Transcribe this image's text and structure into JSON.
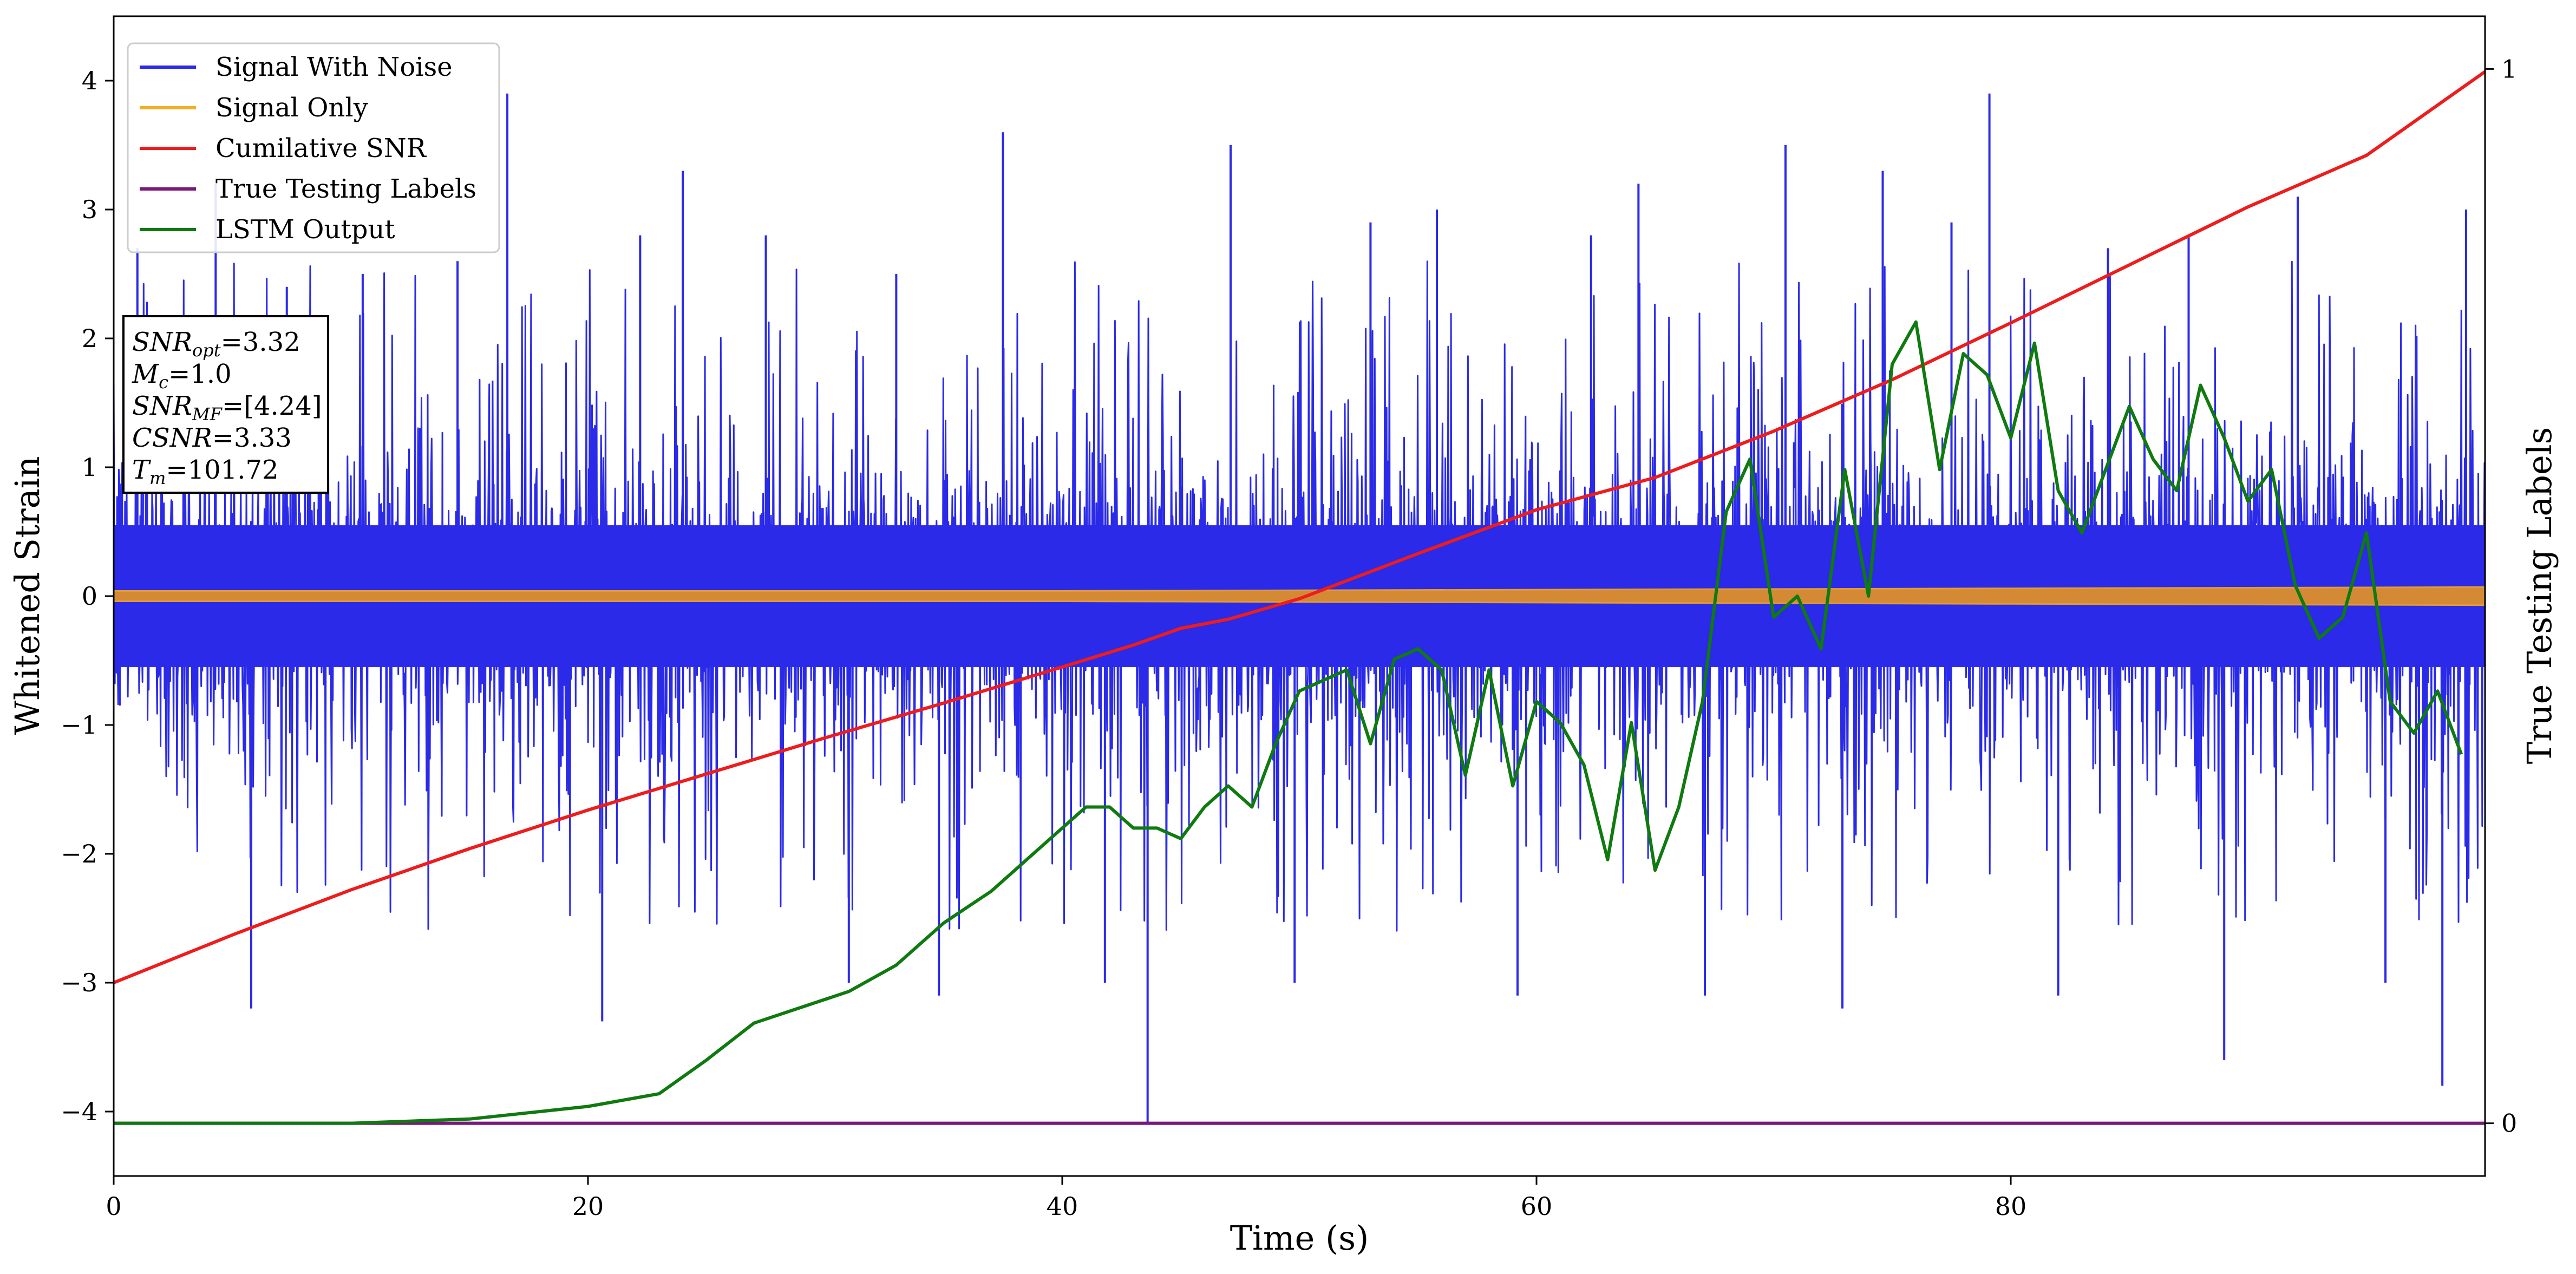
{
  "chart_data": {
    "type": "line",
    "xlabel": "Time (s)",
    "ylabel": "Whitened Strain",
    "y2label": "True Testing Labels",
    "xlim": [
      0,
      100
    ],
    "ylim": [
      -4.5,
      4.5
    ],
    "y2lim": [
      -0.05,
      1.05
    ],
    "grid": false,
    "legend_position": "top-left",
    "x_ticks": [
      {
        "value": 0,
        "label": "0"
      },
      {
        "value": 20,
        "label": "20"
      },
      {
        "value": 40,
        "label": "40"
      },
      {
        "value": 60,
        "label": "60"
      },
      {
        "value": 80,
        "label": "80"
      }
    ],
    "y_ticks": [
      {
        "value": 4,
        "label": "4"
      },
      {
        "value": 3,
        "label": "3"
      },
      {
        "value": 2,
        "label": "2"
      },
      {
        "value": 1,
        "label": "1"
      },
      {
        "value": 0,
        "label": "0"
      },
      {
        "value": -1,
        "label": "−1"
      },
      {
        "value": -2,
        "label": "−2"
      },
      {
        "value": -3,
        "label": "−3"
      },
      {
        "value": -4,
        "label": "−4"
      }
    ],
    "y2_ticks": [
      {
        "value": 1,
        "label": "1"
      },
      {
        "value": 0,
        "label": "0"
      }
    ],
    "series": [
      {
        "name": "Signal With Noise",
        "color": "#2a2ae8",
        "axis": "left",
        "kind": "noise",
        "x_range": [
          0,
          100
        ],
        "amplitude": 0.6,
        "peaks": [
          {
            "x": 1.0,
            "y": 2.7
          },
          {
            "x": 4.3,
            "y": 3.2
          },
          {
            "x": 5.8,
            "y": -3.2
          },
          {
            "x": 7.3,
            "y": 2.4
          },
          {
            "x": 10.5,
            "y": 2.5
          },
          {
            "x": 14.5,
            "y": 2.6
          },
          {
            "x": 16.6,
            "y": 3.9
          },
          {
            "x": 20.6,
            "y": -3.3
          },
          {
            "x": 22.2,
            "y": 2.8
          },
          {
            "x": 24.0,
            "y": 3.3
          },
          {
            "x": 27.5,
            "y": 2.8
          },
          {
            "x": 31.0,
            "y": -3.0
          },
          {
            "x": 33.0,
            "y": 2.5
          },
          {
            "x": 34.8,
            "y": -3.1
          },
          {
            "x": 37.5,
            "y": 3.6
          },
          {
            "x": 41.8,
            "y": -3.0
          },
          {
            "x": 43.6,
            "y": -4.1
          },
          {
            "x": 47.1,
            "y": 3.5
          },
          {
            "x": 49.8,
            "y": -3.0
          },
          {
            "x": 53.0,
            "y": 2.9
          },
          {
            "x": 55.8,
            "y": 3.0
          },
          {
            "x": 59.2,
            "y": -3.1
          },
          {
            "x": 62.3,
            "y": 2.8
          },
          {
            "x": 64.3,
            "y": 3.2
          },
          {
            "x": 67.1,
            "y": -3.1
          },
          {
            "x": 70.5,
            "y": 3.5
          },
          {
            "x": 72.9,
            "y": -3.2
          },
          {
            "x": 74.6,
            "y": 3.3
          },
          {
            "x": 77.5,
            "y": 2.9
          },
          {
            "x": 79.1,
            "y": 3.9
          },
          {
            "x": 82.0,
            "y": -3.1
          },
          {
            "x": 84.1,
            "y": 2.7
          },
          {
            "x": 87.5,
            "y": 2.8
          },
          {
            "x": 89.0,
            "y": -3.6
          },
          {
            "x": 92.1,
            "y": 3.1
          },
          {
            "x": 95.8,
            "y": -3.0
          },
          {
            "x": 98.2,
            "y": -3.8
          },
          {
            "x": 99.2,
            "y": 3.0
          }
        ]
      },
      {
        "name": "Signal Only",
        "color": "#f0b02a",
        "axis": "left",
        "kind": "band",
        "x": [
          0,
          20,
          40,
          60,
          80,
          100
        ],
        "y_upper": [
          0.04,
          0.04,
          0.04,
          0.05,
          0.06,
          0.07
        ],
        "y_lower": [
          -0.04,
          -0.04,
          -0.04,
          -0.05,
          -0.06,
          -0.07
        ]
      },
      {
        "name": "Cumilative SNR",
        "color": "#ee1c1c",
        "axis": "left",
        "kind": "line",
        "x": [
          0,
          5,
          10,
          15,
          20,
          25,
          30,
          35,
          40,
          43,
          45,
          47,
          50,
          55,
          60,
          65,
          70,
          75,
          80,
          85,
          90,
          95,
          100
        ],
        "y": [
          -3.0,
          -2.63,
          -2.28,
          -1.96,
          -1.66,
          -1.38,
          -1.1,
          -0.83,
          -0.55,
          -0.38,
          -0.25,
          -0.18,
          -0.02,
          0.33,
          0.67,
          0.92,
          1.28,
          1.68,
          2.12,
          2.57,
          3.02,
          3.42,
          4.07
        ]
      },
      {
        "name": "True Testing Labels",
        "color": "#7a177a",
        "axis": "right",
        "kind": "line",
        "x": [
          0,
          100
        ],
        "y": [
          0,
          0
        ]
      },
      {
        "name": "LSTM Output",
        "color": "#0f7a0f",
        "axis": "right",
        "kind": "line",
        "x": [
          0,
          10,
          15,
          20,
          23,
          25,
          27,
          29,
          31,
          33,
          35,
          37,
          38,
          39,
          40,
          41,
          42,
          43,
          44,
          45,
          46,
          47,
          48,
          49,
          50,
          51,
          52,
          53,
          54,
          55,
          56,
          57,
          58,
          59,
          60,
          61,
          62,
          63,
          64,
          65,
          66,
          67,
          68,
          69,
          70,
          71,
          72,
          73,
          74,
          75,
          76,
          77,
          78,
          79,
          80,
          81,
          82,
          83,
          84,
          85,
          86,
          87,
          88,
          89,
          90,
          91,
          92,
          93,
          94,
          95,
          96,
          97,
          98,
          99
        ],
        "y": [
          0,
          0,
          0.004,
          0.016,
          0.028,
          0.06,
          0.095,
          0.11,
          0.125,
          0.15,
          0.19,
          0.22,
          0.24,
          0.26,
          0.28,
          0.3,
          0.3,
          0.28,
          0.28,
          0.27,
          0.3,
          0.32,
          0.3,
          0.36,
          0.41,
          0.42,
          0.43,
          0.36,
          0.44,
          0.45,
          0.43,
          0.33,
          0.43,
          0.32,
          0.4,
          0.38,
          0.34,
          0.25,
          0.38,
          0.24,
          0.3,
          0.4,
          0.58,
          0.63,
          0.48,
          0.5,
          0.45,
          0.62,
          0.5,
          0.72,
          0.76,
          0.62,
          0.73,
          0.71,
          0.65,
          0.74,
          0.6,
          0.56,
          0.62,
          0.68,
          0.63,
          0.6,
          0.7,
          0.65,
          0.59,
          0.62,
          0.51,
          0.46,
          0.48,
          0.56,
          0.4,
          0.37,
          0.41,
          0.35
        ]
      }
    ],
    "legend": [
      {
        "label": "Signal With Noise",
        "color": "#2a2ae8"
      },
      {
        "label": "Signal Only",
        "color": "#f0b02a"
      },
      {
        "label": "Cumilative SNR",
        "color": "#ee1c1c"
      },
      {
        "label": "True Testing Labels",
        "color": "#7a177a"
      },
      {
        "label": "LSTM Output",
        "color": "#0f7a0f"
      }
    ],
    "annotation": {
      "lines": [
        {
          "symbol": "SNR",
          "subscript": "opt",
          "value": "=3.32"
        },
        {
          "symbol": "M",
          "subscript": "c",
          "value": "=1.0"
        },
        {
          "symbol": "SNR",
          "subscript": "MF",
          "value": "=[4.24]"
        },
        {
          "symbol": "CSNR",
          "subscript": "",
          "value": "=3.33"
        },
        {
          "symbol": "T",
          "subscript": "m",
          "value": "=101.72"
        }
      ]
    }
  }
}
